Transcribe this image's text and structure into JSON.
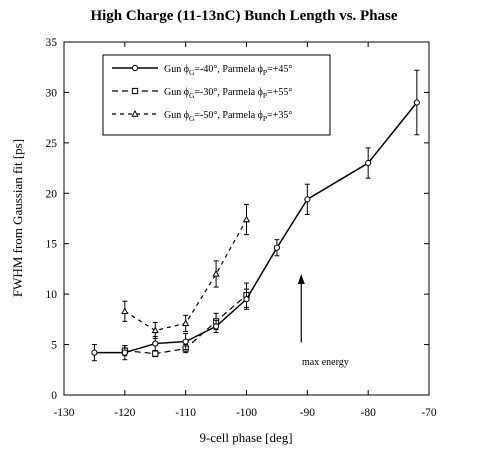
{
  "chart_data": {
    "type": "line",
    "title": "High Charge (11-13nC) Bunch Length vs. Phase",
    "xlabel": "9-cell phase [deg]",
    "ylabel": "FWHM from Gaussian fit [ps]",
    "xlim": [
      -130,
      -70
    ],
    "ylim": [
      0,
      35
    ],
    "xticks": [
      -130,
      -120,
      -110,
      -100,
      -90,
      -80,
      -70
    ],
    "yticks": [
      0,
      5,
      10,
      15,
      20,
      25,
      30,
      35
    ],
    "grid": false,
    "legend_position": "top-left",
    "series": [
      {
        "name": "Gun ϕG=-40°, Parmela ϕP=+45°",
        "legend": {
          "pre": "Gun ϕ",
          "sub1": "G",
          "mid": "=-40°, Parmela ϕ",
          "sub2": "P",
          "post": "=+45°"
        },
        "line_style": "solid",
        "marker": "circle",
        "x": [
          -125,
          -120,
          -115,
          -110,
          -105,
          -100,
          -95,
          -90,
          -80,
          -72
        ],
        "y": [
          4.2,
          4.2,
          5.1,
          5.3,
          6.8,
          9.5,
          14.6,
          19.4,
          23.0,
          29.0
        ],
        "err": [
          0.8,
          0.7,
          0.7,
          0.8,
          0.6,
          1.0,
          0.8,
          1.5,
          1.5,
          3.2
        ]
      },
      {
        "name": "Gun ϕG=-30°, Parmela ϕP=+55°",
        "legend": {
          "pre": "Gun ϕ",
          "sub1": "G",
          "mid": "=-30°, Parmela ϕ",
          "sub2": "P",
          "post": "=+55°"
        },
        "line_style": "dashed",
        "marker": "square",
        "x": [
          -120,
          -115,
          -110,
          -105,
          -100
        ],
        "y": [
          4.4,
          4.1,
          4.6,
          7.3,
          9.9
        ],
        "err": [
          0.5,
          0.3,
          0.4,
          0.8,
          1.2
        ]
      },
      {
        "name": "Gun ϕG=-50°, Parmela ϕP=+35°",
        "legend": {
          "pre": "Gun ϕ",
          "sub1": "G",
          "mid": "=-50°, Parmela ϕ",
          "sub2": "P",
          "post": "=+35°"
        },
        "line_style": "short-dashed",
        "marker": "triangle",
        "x": [
          -120,
          -115,
          -110,
          -105,
          -100
        ],
        "y": [
          8.3,
          6.4,
          7.1,
          12.0,
          17.4
        ],
        "err": [
          1.0,
          0.8,
          0.8,
          1.3,
          1.5
        ]
      }
    ],
    "annotations": [
      {
        "text": "max energy",
        "arrow_x": -91,
        "arrow_y_from": 5.2,
        "arrow_y_to": 12.0
      }
    ]
  }
}
